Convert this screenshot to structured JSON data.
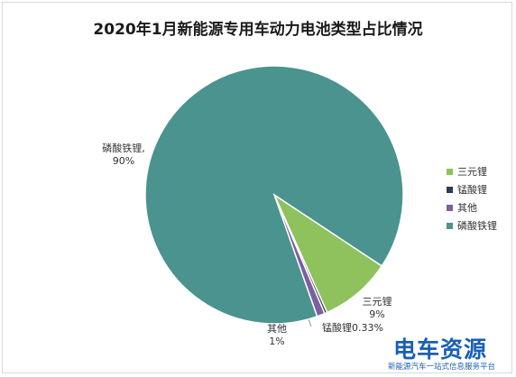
{
  "chart_data": {
    "type": "pie",
    "title": "2020年1月新能源专用车动力电池类型占比情况",
    "slices": [
      {
        "name": "磷酸铁锂",
        "value": 90,
        "label": "磷酸铁锂,\n90%",
        "color": "#4a938f"
      },
      {
        "name": "三元锂",
        "value": 9,
        "label": "三元锂\n9%",
        "color": "#8fc15d"
      },
      {
        "name": "锰酸锂",
        "value": 0.33,
        "label": "锰酸锂0.33%",
        "color": "#2b3d52"
      },
      {
        "name": "其他",
        "value": 1,
        "label": "其他\n1%",
        "color": "#7d5fa0"
      }
    ],
    "legend": [
      "三元锂",
      "锰酸锂",
      "其他",
      "磷酸铁锂"
    ],
    "legend_position": "right"
  },
  "logo": {
    "main": "电车资源",
    "sub": "新能源汽车一站式信息服务平台"
  }
}
